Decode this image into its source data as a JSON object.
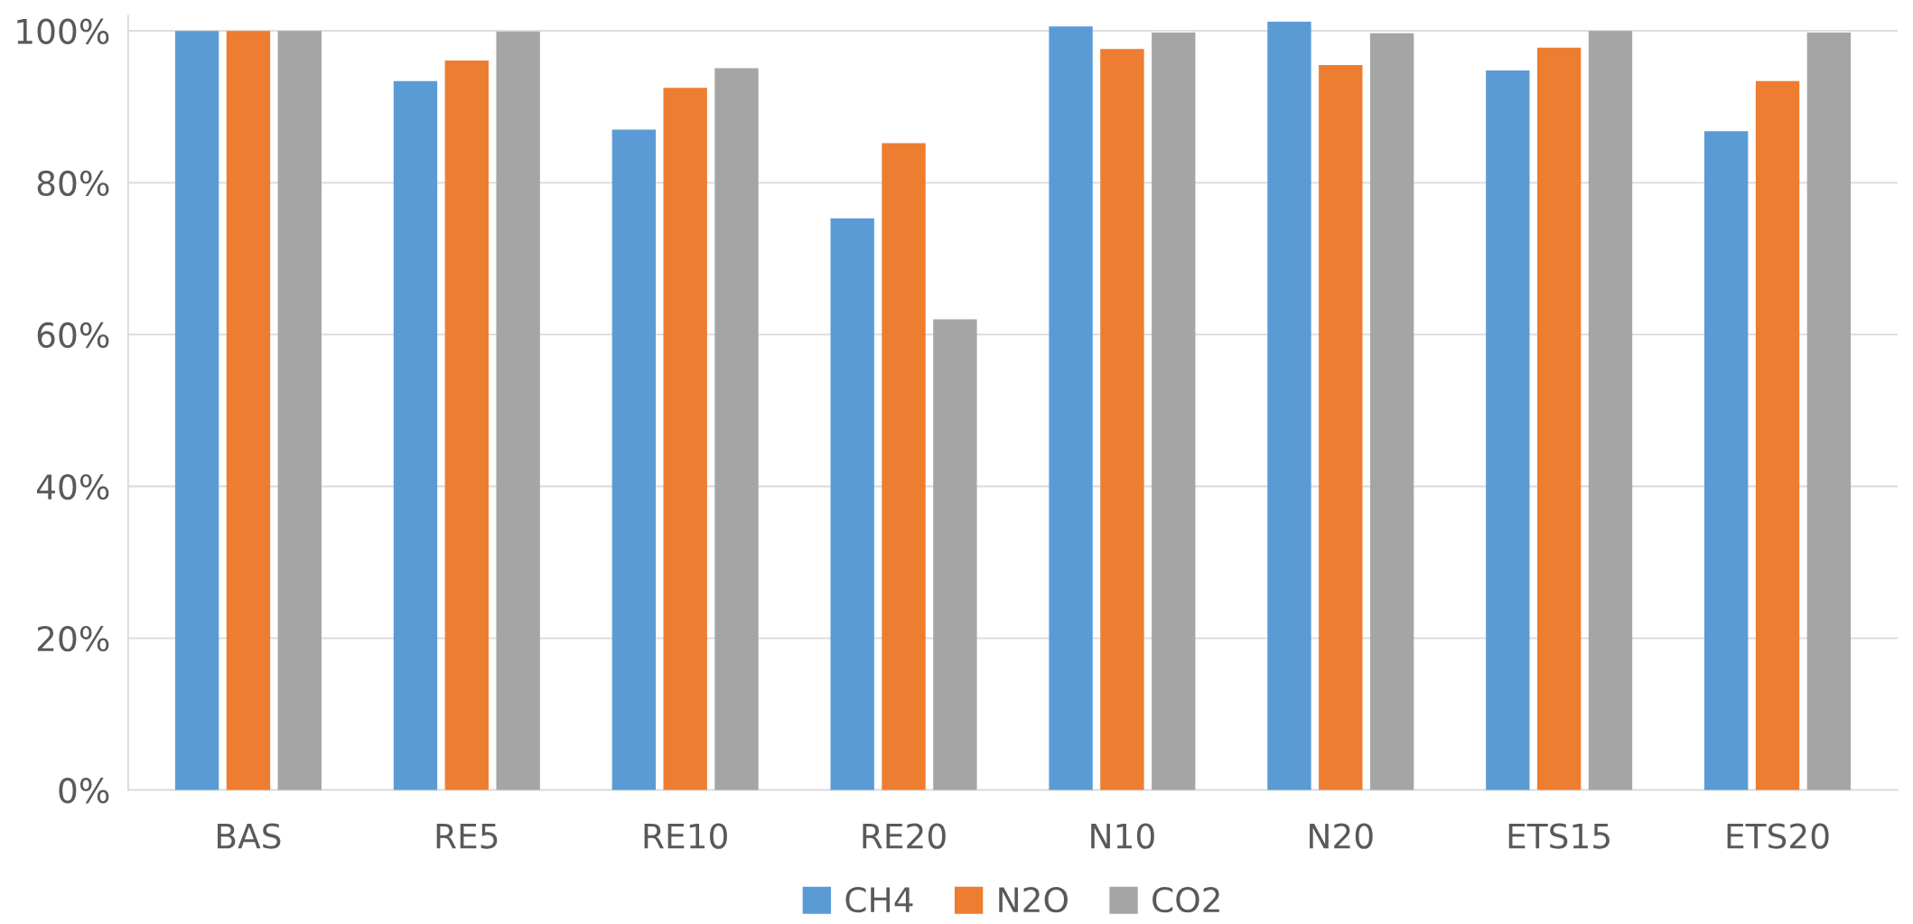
{
  "chart_data": {
    "type": "bar",
    "categories": [
      "BAS",
      "RE5",
      "RE10",
      "RE20",
      "N10",
      "N20",
      "ETS15",
      "ETS20"
    ],
    "series": [
      {
        "name": "CH4",
        "color": "#5b9bd5",
        "values": [
          100,
          93.4,
          87.0,
          75.3,
          100.6,
          101.2,
          94.8,
          86.8
        ]
      },
      {
        "name": "N2O",
        "color": "#ed7d31",
        "values": [
          100,
          96.1,
          92.5,
          85.2,
          97.6,
          95.5,
          97.8,
          93.4
        ]
      },
      {
        "name": "CO2",
        "color": "#a5a5a5",
        "values": [
          100,
          99.9,
          95.1,
          62.0,
          99.8,
          99.7,
          100,
          99.8
        ]
      }
    ],
    "ylim": [
      0,
      102
    ],
    "yticks": [
      {
        "value": 0,
        "label": "0%"
      },
      {
        "value": 20,
        "label": "20%"
      },
      {
        "value": 40,
        "label": "40%"
      },
      {
        "value": 60,
        "label": "60%"
      },
      {
        "value": 80,
        "label": "80%"
      },
      {
        "value": 100,
        "label": "100%"
      }
    ],
    "grid": "y",
    "legend": "bottom"
  }
}
